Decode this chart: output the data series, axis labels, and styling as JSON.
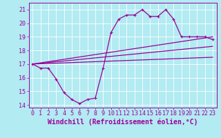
{
  "background_color": "#b2ebf2",
  "grid_color": "#ffffff",
  "line_color": "#990099",
  "xlabel": "Windchill (Refroidissement éolien,°C)",
  "xlabel_fontsize": 7,
  "tick_fontsize": 6,
  "ylim": [
    13.8,
    21.5
  ],
  "xlim": [
    -0.5,
    23.5
  ],
  "yticks": [
    14,
    15,
    16,
    17,
    18,
    19,
    20,
    21
  ],
  "xticks": [
    0,
    1,
    2,
    3,
    4,
    5,
    6,
    7,
    8,
    9,
    10,
    11,
    12,
    13,
    14,
    15,
    16,
    17,
    18,
    19,
    20,
    21,
    22,
    23
  ],
  "curve_main_x": [
    0,
    1,
    2,
    3,
    4,
    5,
    6,
    7,
    8,
    9,
    10,
    11,
    12,
    13,
    14,
    15,
    16,
    17,
    18,
    19,
    20,
    21,
    22,
    23
  ],
  "curve_main_y": [
    17.0,
    16.7,
    16.7,
    15.9,
    14.9,
    14.4,
    14.1,
    14.4,
    14.5,
    16.7,
    19.3,
    20.3,
    20.6,
    20.6,
    21.0,
    20.5,
    20.5,
    21.0,
    20.3,
    19.0,
    19.0,
    19.0,
    19.0,
    18.8
  ],
  "line1_x": [
    0,
    23
  ],
  "line1_y": [
    17.0,
    19.0
  ],
  "line2_x": [
    0,
    23
  ],
  "line2_y": [
    17.0,
    18.3
  ],
  "line3_x": [
    0,
    23
  ],
  "line3_y": [
    17.0,
    17.5
  ],
  "lw": 0.9,
  "ms": 3.0
}
